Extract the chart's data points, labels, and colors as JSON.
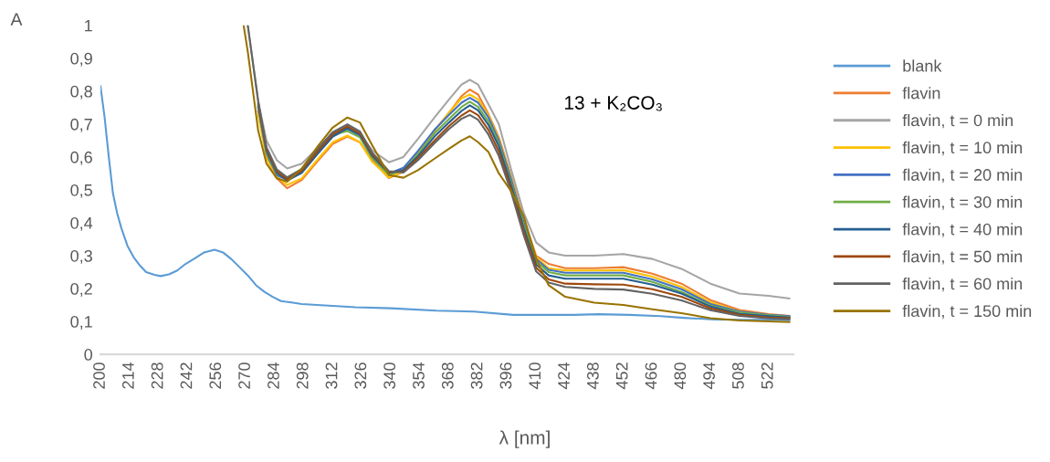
{
  "chart_data": {
    "type": "line",
    "ylabel": "A",
    "xlabel": "λ [nm]",
    "annotations": [
      "13 + K₂CO₃"
    ],
    "x": [
      271,
      276,
      280,
      285,
      290,
      297,
      305,
      312,
      319,
      325,
      331,
      339,
      346,
      353,
      361,
      368,
      374,
      378,
      382,
      387,
      392,
      398,
      404,
      410,
      416,
      424,
      438,
      452,
      466,
      480,
      494,
      508,
      522,
      532
    ],
    "xlim": [
      200,
      534
    ],
    "xticks": [
      200,
      214,
      228,
      242,
      256,
      270,
      284,
      298,
      312,
      326,
      340,
      354,
      368,
      382,
      396,
      410,
      424,
      438,
      452,
      466,
      480,
      494,
      508,
      522
    ],
    "ylim": [
      0,
      1
    ],
    "yticks": [
      0,
      {
        "value": 0.1,
        "label": "0,1"
      },
      {
        "value": 0.2,
        "label": "0,2"
      },
      {
        "value": 0.3,
        "label": "0,3"
      },
      {
        "value": 0.4,
        "label": "0,4"
      },
      {
        "value": 0.5,
        "label": "0,5"
      },
      {
        "value": 0.6,
        "label": "0,6"
      },
      {
        "value": 0.7,
        "label": "0,7"
      },
      {
        "value": 0.8,
        "label": "0,8"
      },
      {
        "value": 0.9,
        "label": "0,9"
      },
      1
    ],
    "legend": "right",
    "marker": "none",
    "line_style": "solid",
    "series": [
      {
        "name": "blank",
        "color": "#5b9bd5",
        "x": [
          200,
          202,
          204,
          206,
          208,
          210,
          213,
          216,
          219,
          222,
          226,
          229,
          233,
          237,
          241,
          245,
          250,
          255,
          259,
          263,
          267,
          271,
          275,
          279,
          283,
          287,
          292,
          297,
          310,
          323,
          340,
          362,
          380,
          399,
          415,
          428,
          440,
          455,
          470,
          481,
          496,
          510,
          522,
          532
        ],
        "values": [
          0.815,
          0.72,
          0.6,
          0.49,
          0.43,
          0.385,
          0.33,
          0.295,
          0.27,
          0.25,
          0.242,
          0.238,
          0.243,
          0.255,
          0.275,
          0.29,
          0.31,
          0.318,
          0.31,
          0.29,
          0.265,
          0.24,
          0.21,
          0.19,
          0.175,
          0.162,
          0.158,
          0.153,
          0.148,
          0.143,
          0.14,
          0.133,
          0.13,
          0.12,
          0.12,
          0.12,
          0.122,
          0.12,
          0.116,
          0.111,
          0.106,
          0.105,
          0.105,
          0.104
        ]
      },
      {
        "name": "flavin",
        "color": "#ed7d31",
        "values": [
          null,
          0.74,
          0.6,
          0.535,
          0.505,
          0.53,
          0.59,
          0.64,
          0.662,
          0.645,
          0.59,
          0.536,
          0.555,
          0.61,
          0.68,
          0.735,
          0.785,
          0.805,
          0.79,
          0.73,
          0.66,
          0.54,
          0.41,
          0.3,
          0.275,
          0.262,
          0.262,
          0.265,
          0.245,
          0.215,
          0.165,
          0.135,
          0.122,
          0.117
        ]
      },
      {
        "name": "flavin, t = 0 min",
        "color": "#a5a5a5",
        "values": [
          1.0,
          0.77,
          0.65,
          0.59,
          0.565,
          0.58,
          0.63,
          0.67,
          0.69,
          0.67,
          0.62,
          0.584,
          0.6,
          0.655,
          0.72,
          0.775,
          0.82,
          0.835,
          0.82,
          0.76,
          0.7,
          0.56,
          0.43,
          0.34,
          0.31,
          0.3,
          0.3,
          0.305,
          0.29,
          0.26,
          0.215,
          0.185,
          0.178,
          0.17
        ]
      },
      {
        "name": "flavin, t = 10 min",
        "color": "#ffc000",
        "values": [
          null,
          0.73,
          0.595,
          0.54,
          0.515,
          0.535,
          0.595,
          0.645,
          0.665,
          0.645,
          0.585,
          0.538,
          0.555,
          0.612,
          0.68,
          0.735,
          0.778,
          0.79,
          0.775,
          0.725,
          0.655,
          0.535,
          0.405,
          0.295,
          0.262,
          0.255,
          0.255,
          0.256,
          0.236,
          0.205,
          0.158,
          0.13,
          0.118,
          0.112
        ]
      },
      {
        "name": "flavin, t = 20 min",
        "color": "#4472c4",
        "values": [
          null,
          0.75,
          0.61,
          0.545,
          0.53,
          0.555,
          0.615,
          0.662,
          0.685,
          0.665,
          0.6,
          0.55,
          0.567,
          0.618,
          0.683,
          0.728,
          0.765,
          0.78,
          0.765,
          0.72,
          0.65,
          0.53,
          0.4,
          0.29,
          0.257,
          0.248,
          0.248,
          0.248,
          0.228,
          0.198,
          0.153,
          0.13,
          0.12,
          0.116
        ]
      },
      {
        "name": "flavin, t = 30 min",
        "color": "#70ad47",
        "values": [
          null,
          0.755,
          0.615,
          0.55,
          0.535,
          0.56,
          0.62,
          0.667,
          0.679,
          0.66,
          0.596,
          0.545,
          0.56,
          0.608,
          0.672,
          0.716,
          0.752,
          0.768,
          0.752,
          0.708,
          0.64,
          0.52,
          0.392,
          0.283,
          0.25,
          0.24,
          0.24,
          0.24,
          0.22,
          0.19,
          0.148,
          0.127,
          0.119,
          0.114
        ]
      },
      {
        "name": "flavin, t = 40 min",
        "color": "#255e91",
        "values": [
          null,
          0.76,
          0.62,
          0.552,
          0.528,
          0.552,
          0.612,
          0.663,
          0.688,
          0.668,
          0.603,
          0.552,
          0.56,
          0.602,
          0.662,
          0.705,
          0.74,
          0.757,
          0.742,
          0.697,
          0.632,
          0.512,
          0.383,
          0.273,
          0.24,
          0.23,
          0.23,
          0.23,
          0.212,
          0.185,
          0.145,
          0.123,
          0.116,
          0.112
        ]
      },
      {
        "name": "flavin, t = 50 min",
        "color": "#9e480e",
        "values": [
          null,
          0.765,
          0.625,
          0.556,
          0.532,
          0.558,
          0.62,
          0.67,
          0.693,
          0.672,
          0.608,
          0.554,
          0.556,
          0.596,
          0.65,
          0.694,
          0.726,
          0.742,
          0.727,
          0.682,
          0.617,
          0.502,
          0.373,
          0.263,
          0.228,
          0.215,
          0.213,
          0.212,
          0.198,
          0.175,
          0.14,
          0.12,
          0.112,
          0.11
        ]
      },
      {
        "name": "flavin, t = 60 min",
        "color": "#636363",
        "values": [
          1.0,
          0.77,
          0.63,
          0.562,
          0.538,
          0.563,
          0.627,
          0.676,
          0.699,
          0.678,
          0.613,
          0.557,
          0.553,
          0.59,
          0.642,
          0.685,
          0.716,
          0.728,
          0.713,
          0.668,
          0.603,
          0.492,
          0.362,
          0.252,
          0.218,
          0.205,
          0.199,
          0.197,
          0.184,
          0.164,
          0.134,
          0.117,
          0.109,
          0.107
        ]
      },
      {
        "name": "flavin, t = 150 min",
        "color": "#997300",
        "x": [
          269,
          271,
          276,
          280,
          285,
          290,
          297,
          305,
          312,
          319,
          325,
          331,
          339,
          346,
          353,
          361,
          368,
          374,
          378,
          382,
          387,
          392,
          398,
          404,
          410,
          416,
          424,
          438,
          452,
          466,
          480,
          494,
          508,
          522,
          532
        ],
        "values": [
          1.0,
          0.92,
          0.68,
          0.58,
          0.535,
          0.525,
          0.565,
          0.635,
          0.69,
          0.72,
          0.705,
          0.635,
          0.545,
          0.537,
          0.56,
          0.595,
          0.625,
          0.65,
          0.663,
          0.645,
          0.615,
          0.55,
          0.495,
          0.42,
          0.29,
          0.21,
          0.175,
          0.157,
          0.15,
          0.137,
          0.125,
          0.11,
          0.103,
          0.1,
          0.098
        ]
      }
    ]
  }
}
